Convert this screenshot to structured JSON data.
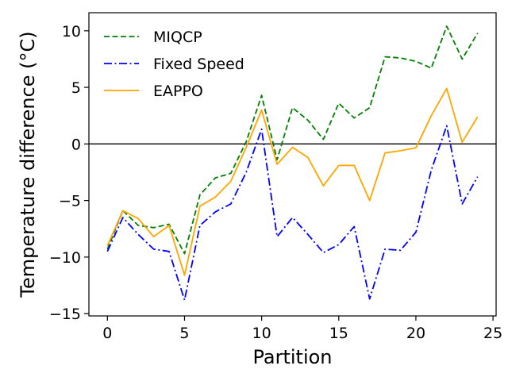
{
  "chart_data": {
    "type": "line",
    "xlabel": "Partition",
    "ylabel": "Temperature difference (°C)",
    "xlim": [
      -1.2,
      25.2
    ],
    "ylim": [
      -15.2,
      11.6
    ],
    "xticks": [
      0,
      5,
      10,
      15,
      20,
      25
    ],
    "yticks": [
      -15,
      -10,
      -5,
      0,
      5,
      10
    ],
    "legend_position": "top-left",
    "reference_line": 0,
    "x": [
      0,
      1,
      2,
      3,
      4,
      5,
      6,
      7,
      8,
      9,
      10,
      11,
      12,
      13,
      14,
      15,
      16,
      17,
      18,
      19,
      20,
      21,
      22,
      23,
      24
    ],
    "series": [
      {
        "name": "MIQCP",
        "color": "#008000",
        "dash": "dashed",
        "values": [
          -9.3,
          -5.9,
          -7.2,
          -7.4,
          -7.1,
          -9.7,
          -4.5,
          -3.0,
          -2.6,
          0.2,
          4.3,
          -1.4,
          3.2,
          2.1,
          0.4,
          3.6,
          2.3,
          3.2,
          7.7,
          7.6,
          7.3,
          6.7,
          10.4,
          7.5,
          9.8
        ]
      },
      {
        "name": "Fixed Speed",
        "color": "#0000ff",
        "dash": "dashdot",
        "values": [
          -9.5,
          -6.5,
          -8.0,
          -9.3,
          -9.5,
          -13.8,
          -7.2,
          -6.0,
          -5.3,
          -2.5,
          1.3,
          -8.2,
          -6.5,
          -8.0,
          -9.6,
          -8.9,
          -7.3,
          -13.7,
          -9.3,
          -9.4,
          -7.8,
          -2.3,
          1.6,
          -5.3,
          -2.9
        ]
      },
      {
        "name": "EAPPO",
        "color": "#ffa500",
        "dash": "solid",
        "values": [
          -9.0,
          -5.9,
          -6.6,
          -8.2,
          -7.2,
          -11.6,
          -5.5,
          -4.7,
          -3.3,
          -0.3,
          3.0,
          -1.8,
          -0.3,
          -1.2,
          -3.7,
          -1.9,
          -1.9,
          -5.0,
          -0.8,
          -0.6,
          -0.35,
          2.5,
          4.9,
          0.15,
          2.4
        ]
      }
    ]
  }
}
